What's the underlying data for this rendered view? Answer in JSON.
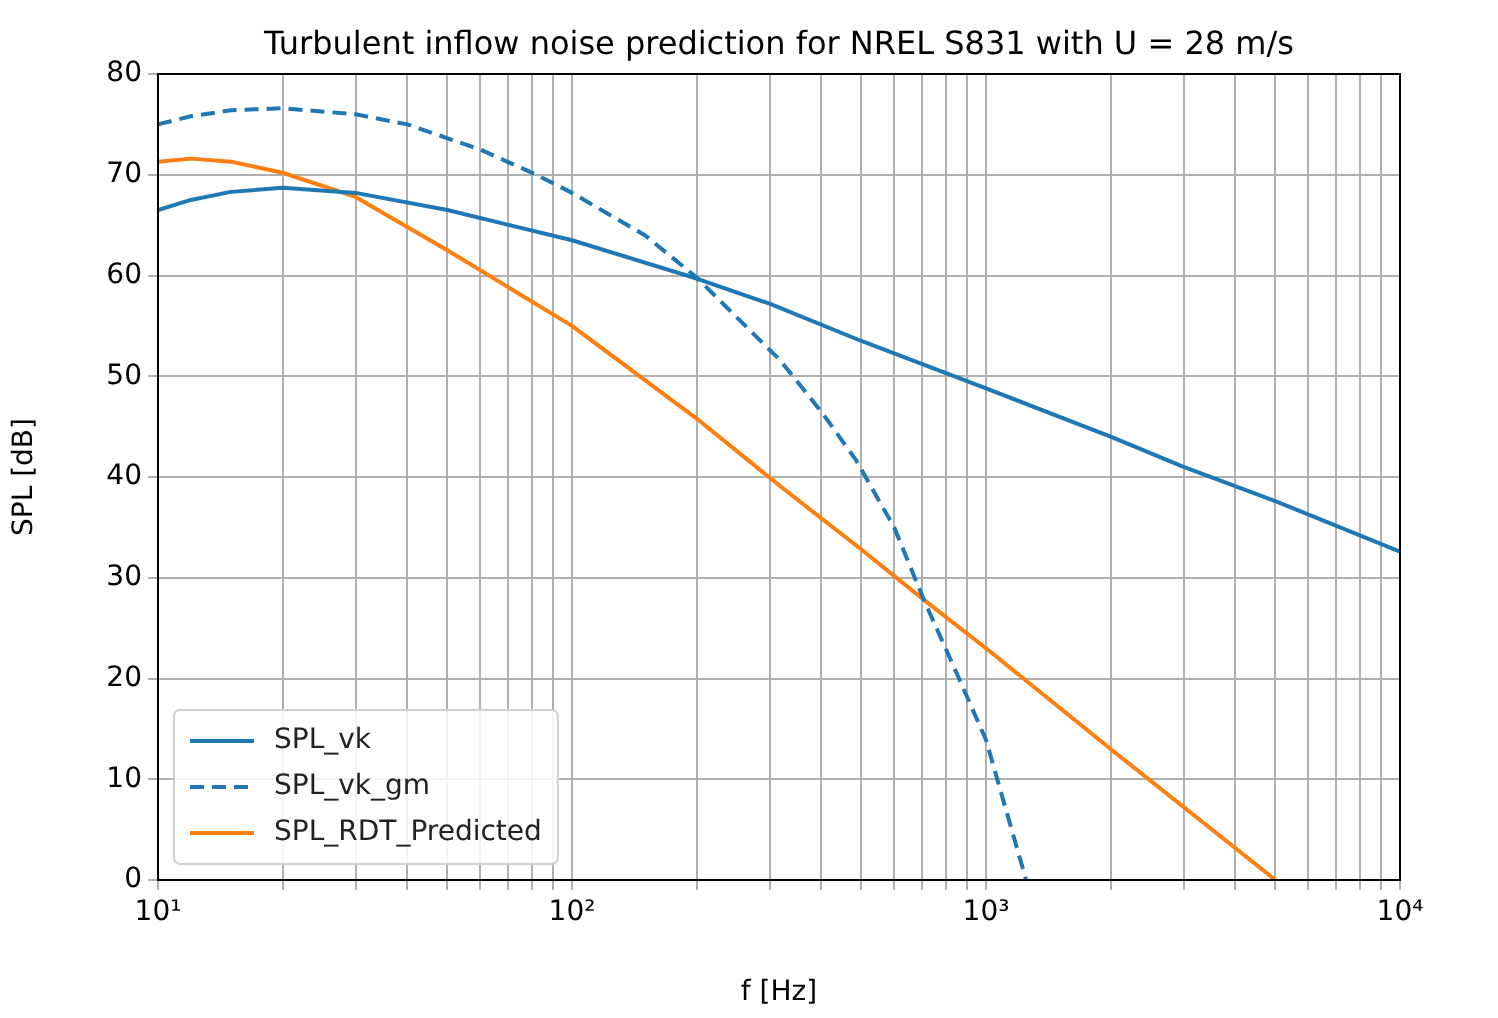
{
  "chart_data": {
    "type": "line",
    "title": "Turbulent inflow noise prediction for NREL S831 with U = 28 m/s",
    "xlabel": "f [Hz]",
    "ylabel": "SPL [dB]",
    "log": "x",
    "grid": true,
    "legend": "bottom left",
    "xlim": [
      10,
      10000
    ],
    "ylim": [
      0,
      80
    ],
    "xticks": [
      {
        "value": 10,
        "label": "10¹"
      },
      {
        "value": 20,
        "label": null
      },
      {
        "value": 30,
        "label": null
      },
      {
        "value": 40,
        "label": null
      },
      {
        "value": 50,
        "label": null
      },
      {
        "value": 60,
        "label": null
      },
      {
        "value": 70,
        "label": null
      },
      {
        "value": 80,
        "label": null
      },
      {
        "value": 90,
        "label": null
      },
      {
        "value": 100,
        "label": "10²"
      },
      {
        "value": 200,
        "label": null
      },
      {
        "value": 300,
        "label": null
      },
      {
        "value": 400,
        "label": null
      },
      {
        "value": 500,
        "label": null
      },
      {
        "value": 600,
        "label": null
      },
      {
        "value": 700,
        "label": null
      },
      {
        "value": 800,
        "label": null
      },
      {
        "value": 900,
        "label": null
      },
      {
        "value": 1000,
        "label": "10³"
      },
      {
        "value": 2000,
        "label": null
      },
      {
        "value": 3000,
        "label": null
      },
      {
        "value": 4000,
        "label": null
      },
      {
        "value": 5000,
        "label": null
      },
      {
        "value": 6000,
        "label": null
      },
      {
        "value": 7000,
        "label": null
      },
      {
        "value": 8000,
        "label": null
      },
      {
        "value": 9000,
        "label": null
      },
      {
        "value": 10000,
        "label": "10⁴"
      }
    ],
    "yticks": [
      0,
      10,
      20,
      30,
      40,
      50,
      60,
      70,
      80
    ],
    "series": [
      {
        "name": "SPL_vk",
        "color": "#1f77b4",
        "line_style": "solid",
        "x": [
          10,
          12,
          15,
          20,
          30,
          50,
          100,
          200,
          300,
          500,
          1000,
          2000,
          3000,
          5000,
          10000
        ],
        "values": [
          66.5,
          67.5,
          68.3,
          68.7,
          68.2,
          66.5,
          63.5,
          59.7,
          57.2,
          53.5,
          48.8,
          44,
          41,
          37.6,
          32.6
        ]
      },
      {
        "name": "SPL_vk_gm",
        "color": "#1f77b4",
        "line_style": "dashed",
        "x": [
          10,
          12,
          15,
          20,
          30,
          40,
          60,
          82,
          100,
          150,
          200,
          318,
          400,
          485,
          600,
          708,
          850,
          1000,
          1250
        ],
        "values": [
          75,
          75.8,
          76.4,
          76.6,
          76,
          75,
          72.5,
          70,
          68.2,
          64,
          59.8,
          51.6,
          46.5,
          41.7,
          35,
          27.8,
          20.5,
          13.9,
          0
        ]
      },
      {
        "name": "SPL_RDT_Predicted",
        "color": "#ff7f0e",
        "line_style": "solid",
        "x": [
          10,
          12,
          15,
          20,
          30,
          50,
          100,
          200,
          318,
          500,
          708,
          1000,
          2000,
          5000
        ],
        "values": [
          71.3,
          71.6,
          71.3,
          70.2,
          67.8,
          62.5,
          55,
          45.8,
          39.1,
          32.8,
          27.8,
          23,
          13,
          0
        ]
      }
    ]
  }
}
